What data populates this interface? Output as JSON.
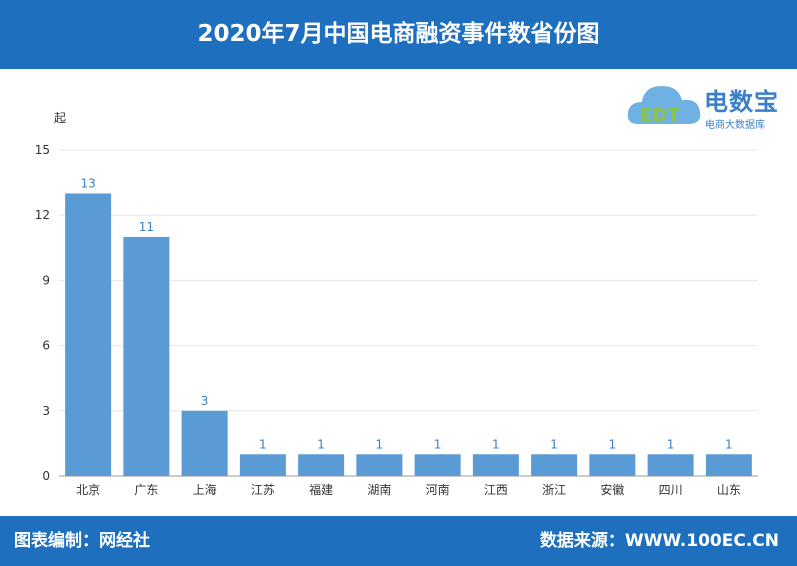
{
  "header": {
    "title": "2020年7月中国电商融资事件数省份图"
  },
  "footer": {
    "left": "图表编制：网经社",
    "right": "数据来源：WWW.100EC.CN"
  },
  "logo": {
    "brand": "电数宝",
    "sub": "电商大数据库",
    "mark": "EDT"
  },
  "chart_data": {
    "type": "bar",
    "title": "2020年7月中国电商融资事件数省份图",
    "xlabel": "",
    "ylabel": "起",
    "ylim": [
      0,
      15
    ],
    "yticks": [
      0,
      3,
      6,
      9,
      12,
      15
    ],
    "categories": [
      "北京",
      "广东",
      "上海",
      "江苏",
      "福建",
      "湖南",
      "河南",
      "江西",
      "浙江",
      "安徽",
      "四川",
      "山东"
    ],
    "values": [
      13,
      11,
      3,
      1,
      1,
      1,
      1,
      1,
      1,
      1,
      1,
      1
    ],
    "bar_color": "#5b9bd5",
    "label_color": "#3b7fc8",
    "grid": true,
    "legend": "none"
  }
}
